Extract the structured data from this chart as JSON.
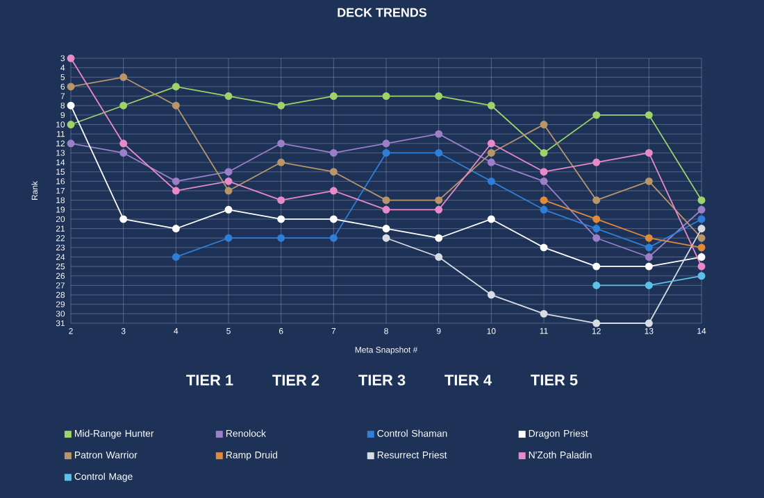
{
  "chart_data": {
    "type": "line",
    "title": "DECK TRENDS",
    "xlabel": "Meta Snapshot #",
    "ylabel": "Rank",
    "x": [
      2,
      3,
      4,
      5,
      6,
      7,
      8,
      9,
      10,
      11,
      12,
      13,
      14
    ],
    "series": [
      {
        "name": "Mid-Range Hunter",
        "color": "#9ed36a",
        "values": [
          10,
          8,
          6,
          7,
          8,
          7,
          7,
          7,
          8,
          13,
          9,
          9,
          18
        ]
      },
      {
        "name": "Renolock",
        "color": "#9b7fc8",
        "values": [
          12,
          13,
          16,
          15,
          12,
          13,
          12,
          11,
          14,
          16,
          22,
          24,
          19
        ]
      },
      {
        "name": "Control Shaman",
        "color": "#2f7fd8",
        "x": [
          4,
          5,
          6,
          7,
          8,
          9,
          10,
          11,
          12,
          13,
          14
        ],
        "values": [
          24,
          22,
          22,
          22,
          13,
          13,
          16,
          19,
          21,
          23,
          20
        ]
      },
      {
        "name": "Dragon Priest",
        "color": "#ffffff",
        "values": [
          8,
          20,
          21,
          19,
          20,
          20,
          21,
          22,
          20,
          23,
          25,
          25,
          24
        ]
      },
      {
        "name": "Patron Warrior",
        "color": "#b8956a",
        "values": [
          6,
          5,
          8,
          17,
          14,
          15,
          18,
          18,
          13,
          10,
          18,
          16,
          22
        ]
      },
      {
        "name": "Ramp Druid",
        "color": "#e08a3a",
        "x": [
          11,
          12,
          13,
          14
        ],
        "values": [
          18,
          20,
          22,
          23
        ]
      },
      {
        "name": "Resurrect Priest",
        "color": "#d8dce4",
        "x": [
          8,
          9,
          10,
          11,
          12,
          13,
          14
        ],
        "values": [
          22,
          24,
          28,
          30,
          31,
          31,
          21
        ]
      },
      {
        "name": "N'Zoth Paladin",
        "color": "#e88ac8",
        "values": [
          3,
          12,
          17,
          16,
          18,
          17,
          19,
          19,
          12,
          15,
          14,
          13,
          25
        ]
      },
      {
        "name": "Control Mage",
        "color": "#5ec0e8",
        "x": [
          12,
          13,
          14
        ],
        "values": [
          27,
          27,
          26
        ]
      }
    ],
    "xlim": [
      2,
      14
    ],
    "xticks": [
      2,
      3,
      4,
      5,
      6,
      7,
      8,
      9,
      10,
      11,
      12,
      13,
      14
    ],
    "ylim": [
      31,
      3
    ],
    "yticks": [
      3,
      4,
      5,
      6,
      7,
      8,
      9,
      10,
      11,
      12,
      13,
      14,
      15,
      16,
      17,
      18,
      19,
      20,
      21,
      22,
      23,
      24,
      25,
      26,
      27,
      28,
      29,
      30,
      31
    ],
    "grid": true,
    "marker": "circle",
    "line_style": "solid",
    "legend": "bottom",
    "annotations": [
      "TIER 1",
      "TIER 2",
      "TIER 3",
      "TIER 4",
      "TIER 5"
    ]
  }
}
